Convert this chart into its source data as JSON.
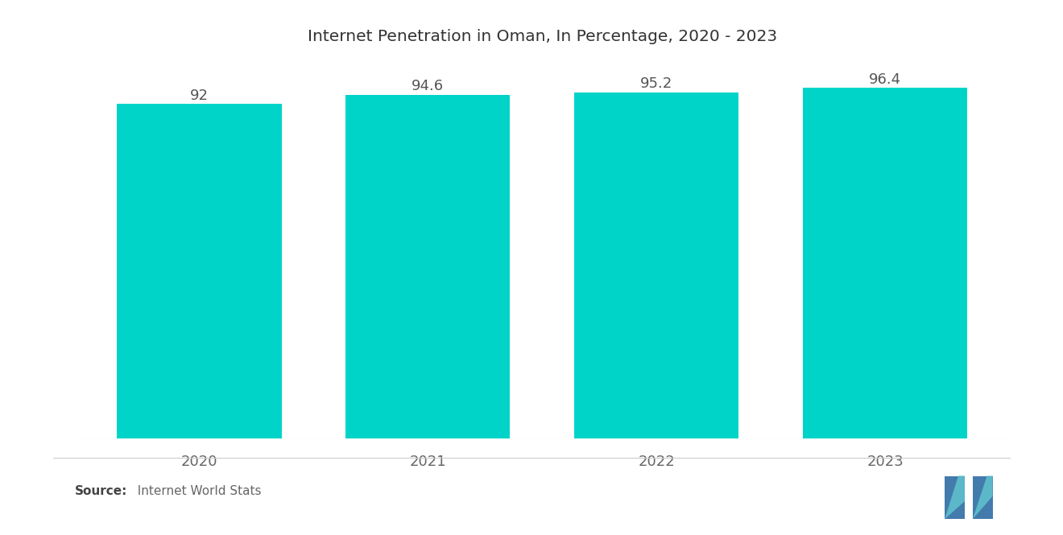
{
  "title": "Internet Penetration in Oman, In Percentage, 2020 - 2023",
  "categories": [
    "2020",
    "2021",
    "2022",
    "2023"
  ],
  "values": [
    92,
    94.6,
    95.2,
    96.4
  ],
  "bar_color": "#00D4C8",
  "background_color": "#ffffff",
  "title_fontsize": 14.5,
  "label_fontsize": 13,
  "tick_fontsize": 13,
  "ylim": [
    0,
    100
  ],
  "source_bold": "Source:",
  "source_normal": "  Internet World Stats",
  "source_fontsize": 11,
  "bar_width": 0.72
}
